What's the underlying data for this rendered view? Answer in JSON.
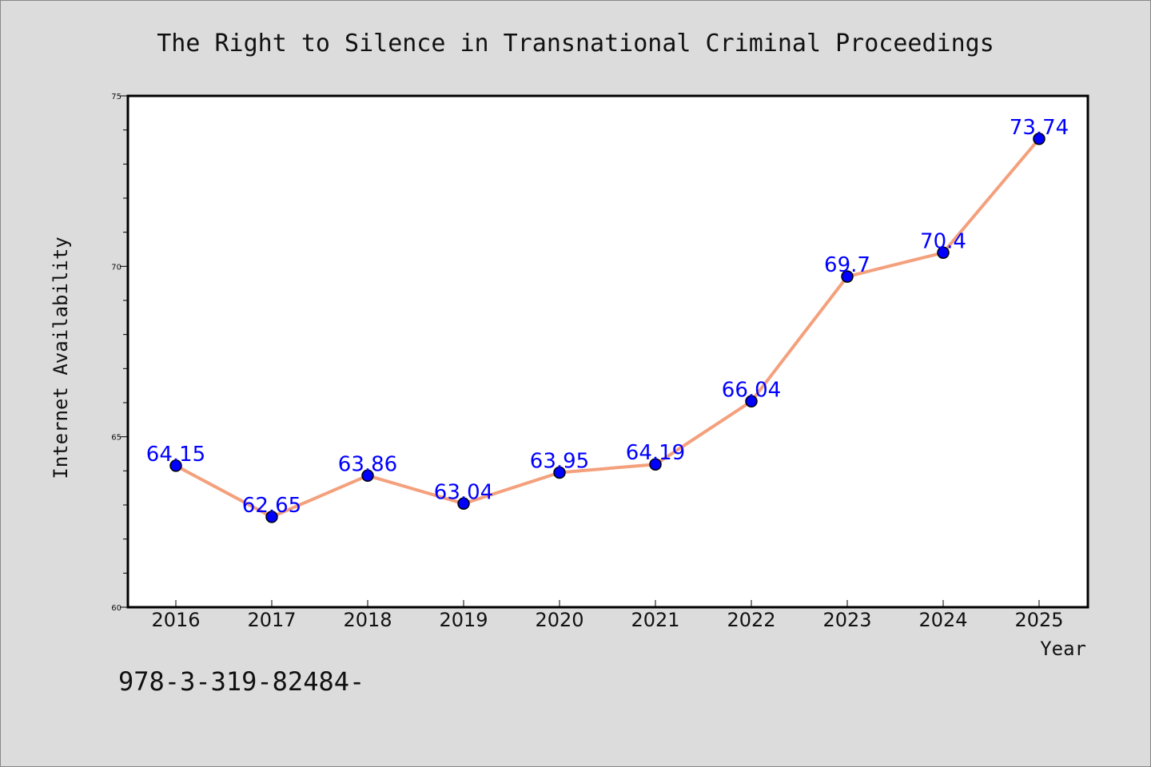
{
  "chart_data": {
    "type": "line",
    "title": "The Right to Silence in Transnational Criminal Proceedings",
    "xlabel": "Year",
    "ylabel": "Internet Availability",
    "categories": [
      "2016",
      "2017",
      "2018",
      "2019",
      "2020",
      "2021",
      "2022",
      "2023",
      "2024",
      "2025"
    ],
    "series": [
      {
        "values": [
          64.15,
          62.65,
          63.86,
          63.04,
          63.95,
          64.19,
          66.04,
          69.7,
          70.4,
          73.74
        ],
        "line_color": "#f4a07c",
        "marker_color": "#0000ff"
      }
    ],
    "data_labels": [
      "64.15",
      "62.65",
      "63.86",
      "63.04",
      "63.95",
      "64.19",
      "66.04",
      "69.7",
      "70.4",
      "73.74"
    ],
    "ylim": [
      60,
      75
    ],
    "yticks": [
      "60",
      "65",
      "70",
      "75"
    ],
    "grid": false,
    "legend": "none"
  },
  "footer": {
    "text": "978-3-319-82484-"
  },
  "colors": {
    "background": "#dcdcdc",
    "plot_background": "#ffffff",
    "label": "#0000ff"
  }
}
